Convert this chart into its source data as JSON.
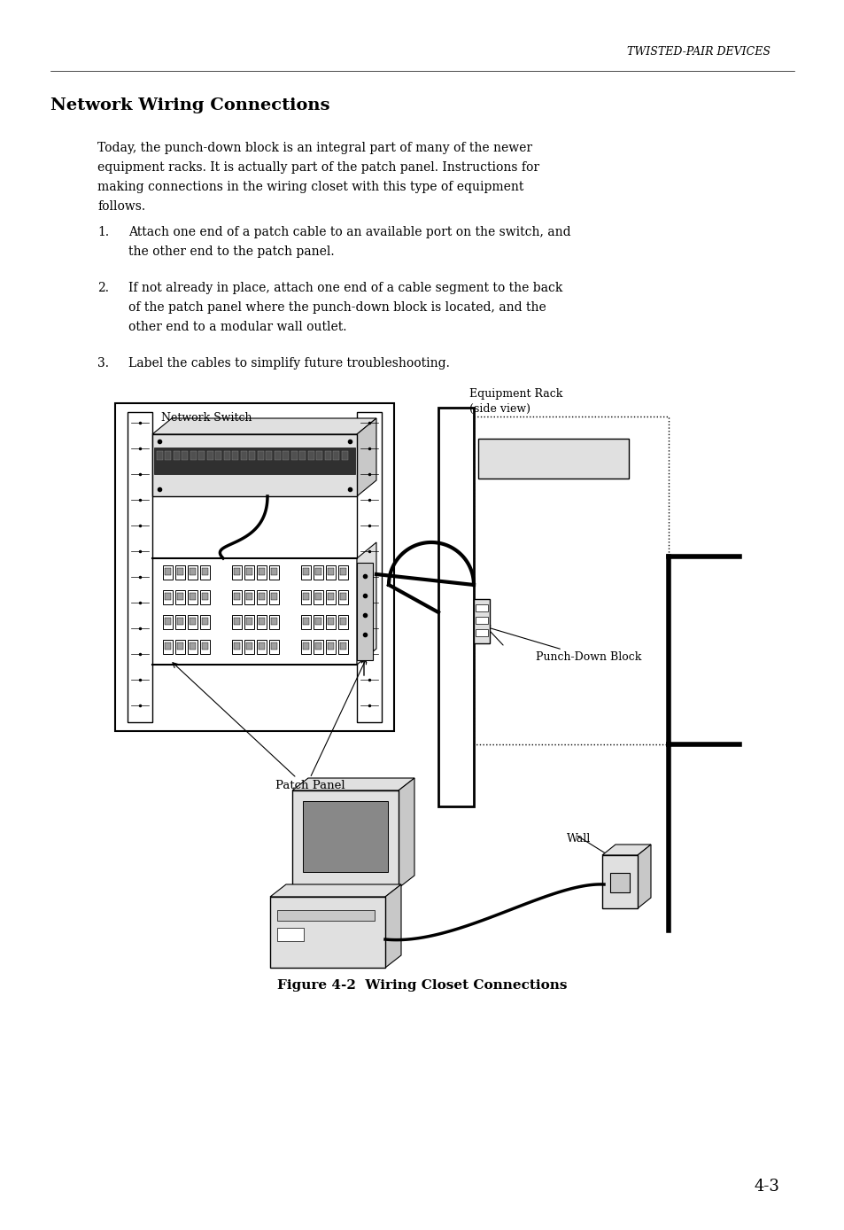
{
  "bg_color": "#ffffff",
  "header_text": "TWISTED-PAIR DEVICES",
  "section_title": "Network Wiring Connections",
  "body_line1": "Today, the punch-down block is an integral part of many of the newer",
  "body_line2": "equipment racks. It is actually part of the patch panel. Instructions for",
  "body_line3": "making connections in the wiring closet with this type of equipment",
  "body_line4": "follows.",
  "item1_num": "1.",
  "item1_text": "Attach one end of a patch cable to an available port on the switch, and",
  "item1_text2": "the other end to the patch panel.",
  "item2_num": "2.",
  "item2_text": "If not already in place, attach one end of a cable segment to the back",
  "item2_text2": "of the patch panel where the punch-down block is located, and the",
  "item2_text3": "other end to a modular wall outlet.",
  "item3_num": "3.",
  "item3_text": "Label the cables to simplify future troubleshooting.",
  "label_network_switch": "Network Switch",
  "label_patch_panel": "Patch Panel",
  "label_equipment_rack_1": "Equipment Rack",
  "label_equipment_rack_2": "(side view)",
  "label_punch_down": "Punch-Down Block",
  "label_wall": "Wall",
  "figure_caption": "Figure 4-2  Wiring Closet Connections",
  "page_number": "4-3",
  "gray_light": "#e0e0e0",
  "gray_mid": "#c8c8c8",
  "gray_dark": "#a0a0a0",
  "black": "#000000",
  "white": "#ffffff"
}
